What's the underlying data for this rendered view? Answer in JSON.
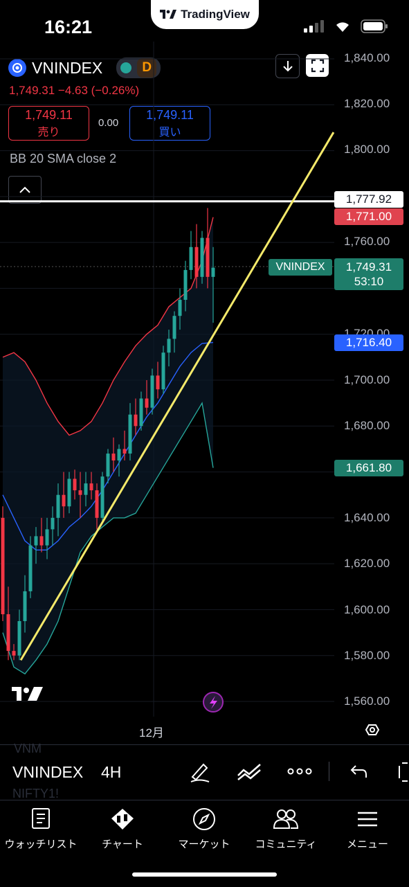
{
  "status_bar": {
    "time": "16:21",
    "app_pill": "TradingView"
  },
  "symbol": {
    "name": "VNINDEX",
    "timeframe_badge": "D",
    "last": "1,749.31",
    "change": "−4.63",
    "change_pct": "(−0.26%)"
  },
  "order": {
    "sell_price": "1,749.11",
    "sell_label": "売り",
    "spread": "0.00",
    "buy_price": "1,749.11",
    "buy_label": "買い"
  },
  "indicator": {
    "label": "BB 20 SMA close 2"
  },
  "price_axis": {
    "ticks": [
      "1,840.00",
      "1,820.00",
      "1,800.00",
      "1,760.00",
      "1,720.00",
      "1,700.00",
      "1,680.00",
      "1,640.00",
      "1,620.00",
      "1,600.00",
      "1,580.00",
      "1,560.00"
    ]
  },
  "price_tags": {
    "horizontal_line": "1,777.92",
    "upper_band": "1,771.00",
    "symbol_tag": "VNINDEX",
    "last_price": "1,749.31",
    "countdown": "53:10",
    "basis": "1,716.40",
    "lower_band": "1,661.80"
  },
  "time_axis": {
    "month_label": "12月"
  },
  "toolbar": {
    "symbol": "VNINDEX",
    "interval": "4H",
    "ghost_top": "VNM",
    "ghost_bottom": "NIFTY1!"
  },
  "nav": {
    "watchlist": "ウォッチリスト",
    "chart": "チャート",
    "market": "マーケット",
    "community": "コミュニティ",
    "menu": "メニュー"
  },
  "colors": {
    "up": "#26a69a",
    "down": "#f23645",
    "trendline": "#f4e96a",
    "upper_band": "#f23645",
    "basis": "#2962ff",
    "lower_band": "#26a69a"
  },
  "chart_data": {
    "type": "candlestick",
    "timeframe": "4H",
    "symbol": "VNINDEX",
    "indicator": "BB 20 SMA close 2",
    "ylim": [
      1555,
      1845
    ],
    "candles": [
      [
        1640,
        1645,
        1595,
        1598
      ],
      [
        1598,
        1610,
        1578,
        1582
      ],
      [
        1582,
        1585,
        1578,
        1580
      ],
      [
        1580,
        1600,
        1578,
        1595
      ],
      [
        1595,
        1615,
        1590,
        1608
      ],
      [
        1608,
        1632,
        1605,
        1628
      ],
      [
        1628,
        1636,
        1620,
        1632
      ],
      [
        1632,
        1640,
        1625,
        1628
      ],
      [
        1628,
        1640,
        1622,
        1635
      ],
      [
        1635,
        1645,
        1628,
        1640
      ],
      [
        1640,
        1655,
        1632,
        1650
      ],
      [
        1650,
        1660,
        1640,
        1645
      ],
      [
        1645,
        1660,
        1642,
        1657
      ],
      [
        1657,
        1661,
        1648,
        1652
      ],
      [
        1652,
        1660,
        1640,
        1650
      ],
      [
        1650,
        1660,
        1645,
        1655
      ],
      [
        1655,
        1660,
        1648,
        1652
      ],
      [
        1652,
        1655,
        1635,
        1640
      ],
      [
        1640,
        1660,
        1638,
        1658
      ],
      [
        1658,
        1670,
        1655,
        1668
      ],
      [
        1668,
        1675,
        1660,
        1665
      ],
      [
        1665,
        1672,
        1658,
        1670
      ],
      [
        1670,
        1678,
        1665,
        1668
      ],
      [
        1668,
        1690,
        1665,
        1685
      ],
      [
        1685,
        1692,
        1676,
        1680
      ],
      [
        1680,
        1695,
        1678,
        1692
      ],
      [
        1692,
        1700,
        1685,
        1688
      ],
      [
        1688,
        1705,
        1685,
        1702
      ],
      [
        1702,
        1708,
        1692,
        1696
      ],
      [
        1696,
        1715,
        1694,
        1712
      ],
      [
        1712,
        1722,
        1706,
        1718
      ],
      [
        1718,
        1730,
        1712,
        1728
      ],
      [
        1728,
        1740,
        1722,
        1735
      ],
      [
        1735,
        1752,
        1730,
        1748
      ],
      [
        1748,
        1765,
        1744,
        1758
      ],
      [
        1758,
        1768,
        1740,
        1745
      ],
      [
        1745,
        1765,
        1742,
        1762
      ],
      [
        1762,
        1775,
        1740,
        1745
      ],
      [
        1745,
        1758,
        1725,
        1749
      ]
    ],
    "bb_upper": [
      1710,
      1712,
      1708,
      1700,
      1690,
      1682,
      1676,
      1678,
      1682,
      1690,
      1700,
      1708,
      1715,
      1720,
      1724,
      1732,
      1736,
      1740,
      1752,
      1771
    ],
    "bb_basis": [
      1650,
      1640,
      1630,
      1626,
      1626,
      1630,
      1636,
      1640,
      1645,
      1652,
      1660,
      1668,
      1676,
      1684,
      1690,
      1698,
      1706,
      1712,
      1716,
      1716.4
    ],
    "bb_lower": [
      1590,
      1575,
      1572,
      1578,
      1585,
      1595,
      1610,
      1625,
      1632,
      1636,
      1640,
      1640,
      1642,
      1650,
      1658,
      1666,
      1674,
      1682,
      1690,
      1661.8
    ],
    "horizontal_line": 1777.92,
    "trendline": [
      [
        0,
        1578
      ],
      [
        1,
        1808
      ]
    ]
  }
}
